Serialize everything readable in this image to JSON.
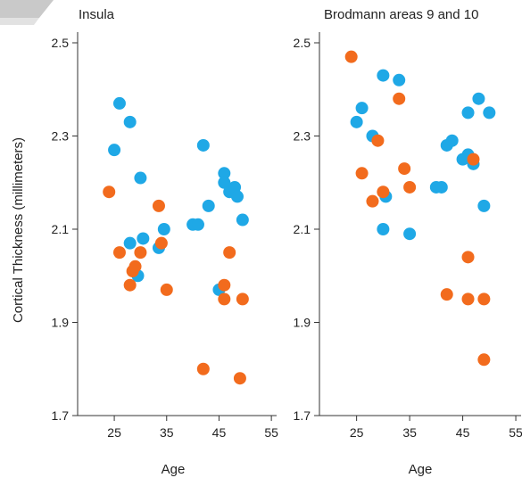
{
  "colors": {
    "blue": "#1fa8e6",
    "orange": "#f26b1d"
  },
  "ylabel": "Cortical Thickness (millimeters)",
  "chart_data": [
    {
      "type": "scatter",
      "title": "Insula",
      "xlabel": "Age",
      "ylabel": "Cortical Thickness (millimeters)",
      "xlim": [
        18,
        56
      ],
      "ylim": [
        1.7,
        2.5
      ],
      "xticks": [
        25,
        35,
        45,
        55
      ],
      "yticks": [
        1.7,
        1.9,
        2.1,
        2.3,
        2.5
      ],
      "grid": false,
      "series": [
        {
          "color": "#1fa8e6",
          "points": [
            [
              25,
              2.27
            ],
            [
              26,
              2.37
            ],
            [
              28,
              2.33
            ],
            [
              28,
              2.07
            ],
            [
              29.5,
              2.0
            ],
            [
              30,
              2.21
            ],
            [
              30.5,
              2.08
            ],
            [
              33.5,
              2.06
            ],
            [
              34.5,
              2.1
            ],
            [
              40,
              2.11
            ],
            [
              41,
              2.11
            ],
            [
              42,
              2.28
            ],
            [
              43,
              2.15
            ],
            [
              45,
              1.97
            ],
            [
              46,
              2.22
            ],
            [
              46,
              2.2
            ],
            [
              47,
              2.18
            ],
            [
              48,
              2.19
            ],
            [
              48.5,
              2.17
            ],
            [
              49.5,
              2.12
            ]
          ]
        },
        {
          "color": "#f26b1d",
          "points": [
            [
              24,
              2.18
            ],
            [
              26,
              2.05
            ],
            [
              28,
              1.98
            ],
            [
              28.5,
              2.01
            ],
            [
              29,
              2.02
            ],
            [
              30,
              2.05
            ],
            [
              33.5,
              2.15
            ],
            [
              34,
              2.07
            ],
            [
              35,
              1.97
            ],
            [
              42,
              1.8
            ],
            [
              46,
              1.95
            ],
            [
              46,
              1.98
            ],
            [
              47,
              2.05
            ],
            [
              49,
              1.78
            ],
            [
              49.5,
              1.95
            ]
          ]
        }
      ]
    },
    {
      "type": "scatter",
      "title": "Brodmann areas 9 and 10",
      "xlabel": "Age",
      "xlim": [
        18,
        56
      ],
      "ylim": [
        1.7,
        2.5
      ],
      "xticks": [
        25,
        35,
        45,
        55
      ],
      "yticks": [
        1.7,
        1.9,
        2.1,
        2.3,
        2.5
      ],
      "grid": false,
      "series": [
        {
          "color": "#1fa8e6",
          "points": [
            [
              25,
              2.33
            ],
            [
              26,
              2.36
            ],
            [
              28,
              2.3
            ],
            [
              30,
              2.43
            ],
            [
              30.5,
              2.17
            ],
            [
              30,
              2.1
            ],
            [
              33,
              2.42
            ],
            [
              35,
              2.09
            ],
            [
              40,
              2.19
            ],
            [
              41,
              2.19
            ],
            [
              42,
              2.28
            ],
            [
              43,
              2.29
            ],
            [
              45,
              2.25
            ],
            [
              46,
              2.26
            ],
            [
              47,
              2.24
            ],
            [
              48,
              2.38
            ],
            [
              46,
              2.35
            ],
            [
              49,
              2.15
            ],
            [
              50,
              2.35
            ]
          ]
        },
        {
          "color": "#f26b1d",
          "points": [
            [
              24,
              2.47
            ],
            [
              26,
              2.22
            ],
            [
              28,
              2.16
            ],
            [
              29,
              2.29
            ],
            [
              30,
              2.18
            ],
            [
              33,
              2.38
            ],
            [
              34,
              2.23
            ],
            [
              35,
              2.19
            ],
            [
              42,
              1.96
            ],
            [
              46,
              2.04
            ],
            [
              46,
              1.95
            ],
            [
              47,
              2.25
            ],
            [
              49,
              1.95
            ],
            [
              49,
              1.82
            ]
          ]
        }
      ]
    }
  ]
}
